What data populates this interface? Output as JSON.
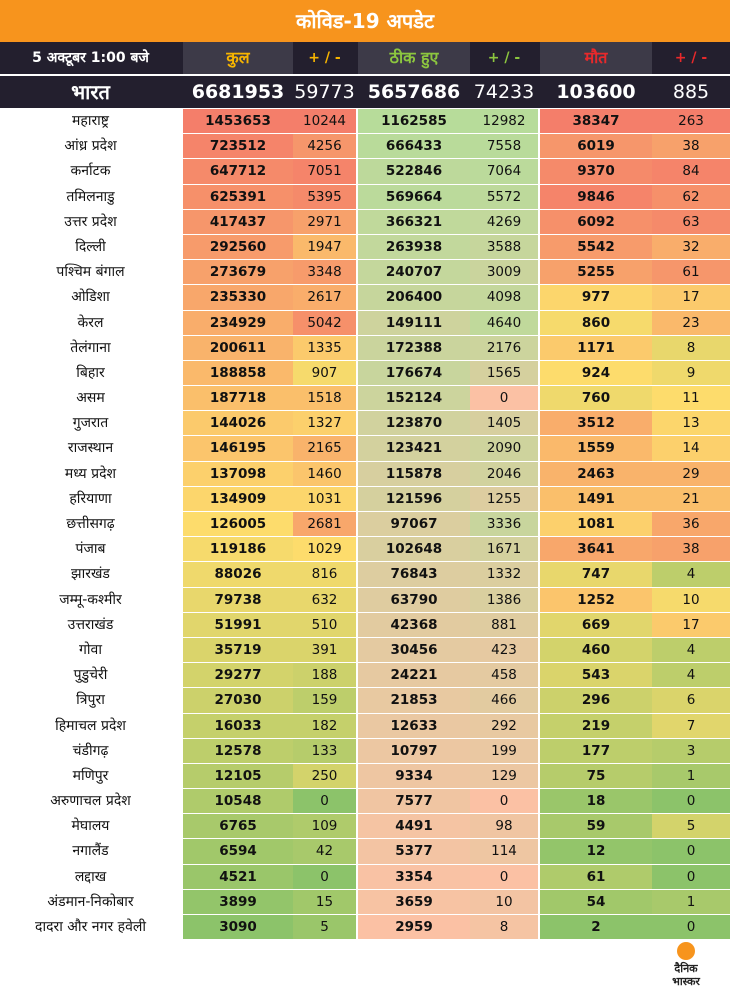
{
  "title": "कोविड-19 अपडेट",
  "header": {
    "date": "5 अक्टूबर  1:00 बजे",
    "total": "कुल",
    "total_change": "+ / -",
    "recovered": "ठीक हुए",
    "recovered_change": "+ / -",
    "deaths": "मौत",
    "deaths_change": "+ / -"
  },
  "national": {
    "name": "भारत",
    "total": "6681953",
    "total_change": "59773",
    "recovered": "5657686",
    "recovered_change": "74233",
    "deaths": "103600",
    "deaths_change": "885"
  },
  "rows": [
    {
      "name": "महाराष्ट्र",
      "total": "1453653",
      "tc": "10244",
      "rec": "1162585",
      "rc": "12982",
      "deaths": "38347",
      "dc": "263"
    },
    {
      "name": "आंध्र प्रदेश",
      "total": "723512",
      "tc": "4256",
      "rec": "666433",
      "rc": "7558",
      "deaths": "6019",
      "dc": "38"
    },
    {
      "name": "कर्नाटक",
      "total": "647712",
      "tc": "7051",
      "rec": "522846",
      "rc": "7064",
      "deaths": "9370",
      "dc": "84"
    },
    {
      "name": "तमिलनाडु",
      "total": "625391",
      "tc": "5395",
      "rec": "569664",
      "rc": "5572",
      "deaths": "9846",
      "dc": "62"
    },
    {
      "name": "उत्तर प्रदेश",
      "total": "417437",
      "tc": "2971",
      "rec": "366321",
      "rc": "4269",
      "deaths": "6092",
      "dc": "63"
    },
    {
      "name": "दिल्ली",
      "total": "292560",
      "tc": "1947",
      "rec": "263938",
      "rc": "3588",
      "deaths": "5542",
      "dc": "32"
    },
    {
      "name": "पश्चिम बंगाल",
      "total": "273679",
      "tc": "3348",
      "rec": "240707",
      "rc": "3009",
      "deaths": "5255",
      "dc": "61"
    },
    {
      "name": "ओडिशा",
      "total": "235330",
      "tc": "2617",
      "rec": "206400",
      "rc": "4098",
      "deaths": "977",
      "dc": "17"
    },
    {
      "name": "केरल",
      "total": "234929",
      "tc": "5042",
      "rec": "149111",
      "rc": "4640",
      "deaths": "860",
      "dc": "23"
    },
    {
      "name": "तेलंगाना",
      "total": "200611",
      "tc": "1335",
      "rec": "172388",
      "rc": "2176",
      "deaths": "1171",
      "dc": "8"
    },
    {
      "name": "बिहार",
      "total": "188858",
      "tc": "907",
      "rec": "176674",
      "rc": "1565",
      "deaths": "924",
      "dc": "9"
    },
    {
      "name": "असम",
      "total": "187718",
      "tc": "1518",
      "rec": "152124",
      "rc": "0",
      "deaths": "760",
      "dc": "11"
    },
    {
      "name": "गुजरात",
      "total": "144026",
      "tc": "1327",
      "rec": "123870",
      "rc": "1405",
      "deaths": "3512",
      "dc": "13"
    },
    {
      "name": "राजस्थान",
      "total": "146195",
      "tc": "2165",
      "rec": "123421",
      "rc": "2090",
      "deaths": "1559",
      "dc": "14"
    },
    {
      "name": "मध्य प्रदेश",
      "total": "137098",
      "tc": "1460",
      "rec": "115878",
      "rc": "2046",
      "deaths": "2463",
      "dc": "29"
    },
    {
      "name": "हरियाणा",
      "total": "134909",
      "tc": "1031",
      "rec": "121596",
      "rc": "1255",
      "deaths": "1491",
      "dc": "21"
    },
    {
      "name": "छत्तीसगढ़",
      "total": "126005",
      "tc": "2681",
      "rec": "97067",
      "rc": "3336",
      "deaths": "1081",
      "dc": "36"
    },
    {
      "name": "पंजाब",
      "total": "119186",
      "tc": "1029",
      "rec": "102648",
      "rc": "1671",
      "deaths": "3641",
      "dc": "38"
    },
    {
      "name": "झारखंड",
      "total": "88026",
      "tc": "816",
      "rec": "76843",
      "rc": "1332",
      "deaths": "747",
      "dc": "4"
    },
    {
      "name": "जम्मू-कश्मीर",
      "total": "79738",
      "tc": "632",
      "rec": "63790",
      "rc": "1386",
      "deaths": "1252",
      "dc": "10"
    },
    {
      "name": "उत्तराखंड",
      "total": "51991",
      "tc": "510",
      "rec": "42368",
      "rc": "881",
      "deaths": "669",
      "dc": "17"
    },
    {
      "name": "गोवा",
      "total": "35719",
      "tc": "391",
      "rec": "30456",
      "rc": "423",
      "deaths": "460",
      "dc": "4"
    },
    {
      "name": "पुडुचेरी",
      "total": "29277",
      "tc": "188",
      "rec": "24221",
      "rc": "458",
      "deaths": "543",
      "dc": "4"
    },
    {
      "name": "त्रिपुरा",
      "total": "27030",
      "tc": "159",
      "rec": "21853",
      "rc": "466",
      "deaths": "296",
      "dc": "6"
    },
    {
      "name": "हिमाचल प्रदेश",
      "total": "16033",
      "tc": "182",
      "rec": "12633",
      "rc": "292",
      "deaths": "219",
      "dc": "7"
    },
    {
      "name": "चंडीगढ़",
      "total": "12578",
      "tc": "133",
      "rec": "10797",
      "rc": "199",
      "deaths": "177",
      "dc": "3"
    },
    {
      "name": "मणिपुर",
      "total": "12105",
      "tc": "250",
      "rec": "9334",
      "rc": "129",
      "deaths": "75",
      "dc": "1"
    },
    {
      "name": "अरुणाचल प्रदेश",
      "total": "10548",
      "tc": "0",
      "rec": "7577",
      "rc": "0",
      "deaths": "18",
      "dc": "0"
    },
    {
      "name": "मेघालय",
      "total": "6765",
      "tc": "109",
      "rec": "4491",
      "rc": "98",
      "deaths": "59",
      "dc": "5"
    },
    {
      "name": "नगालैंड",
      "total": "6594",
      "tc": "42",
      "rec": "5377",
      "rc": "114",
      "deaths": "12",
      "dc": "0"
    },
    {
      "name": "लद्दाख",
      "total": "4521",
      "tc": "0",
      "rec": "3354",
      "rc": "0",
      "deaths": "61",
      "dc": "0"
    },
    {
      "name": "अंडमान-निकोबार",
      "total": "3899",
      "tc": "15",
      "rec": "3659",
      "rc": "10",
      "deaths": "54",
      "dc": "1"
    },
    {
      "name": "दादरा और नगर हवेली",
      "total": "3090",
      "tc": "5",
      "rec": "2959",
      "rc": "8",
      "deaths": "2",
      "dc": "0"
    }
  ],
  "colors": {
    "title_bg": "#f7941d",
    "header_bg": "#231f2e",
    "header_total": "#f7b500",
    "header_recovered": "#8cc63f",
    "header_deaths": "#e8292b",
    "scale_low": "#8cc36a",
    "scale_mid": "#fddc6c",
    "scale_high": "#f47e6a",
    "rec_scale_high": "#b7dc9a",
    "rec_scale_low": "#fbc1a4"
  },
  "logo": {
    "line1": "दैनिक",
    "line2": "भास्कर"
  }
}
